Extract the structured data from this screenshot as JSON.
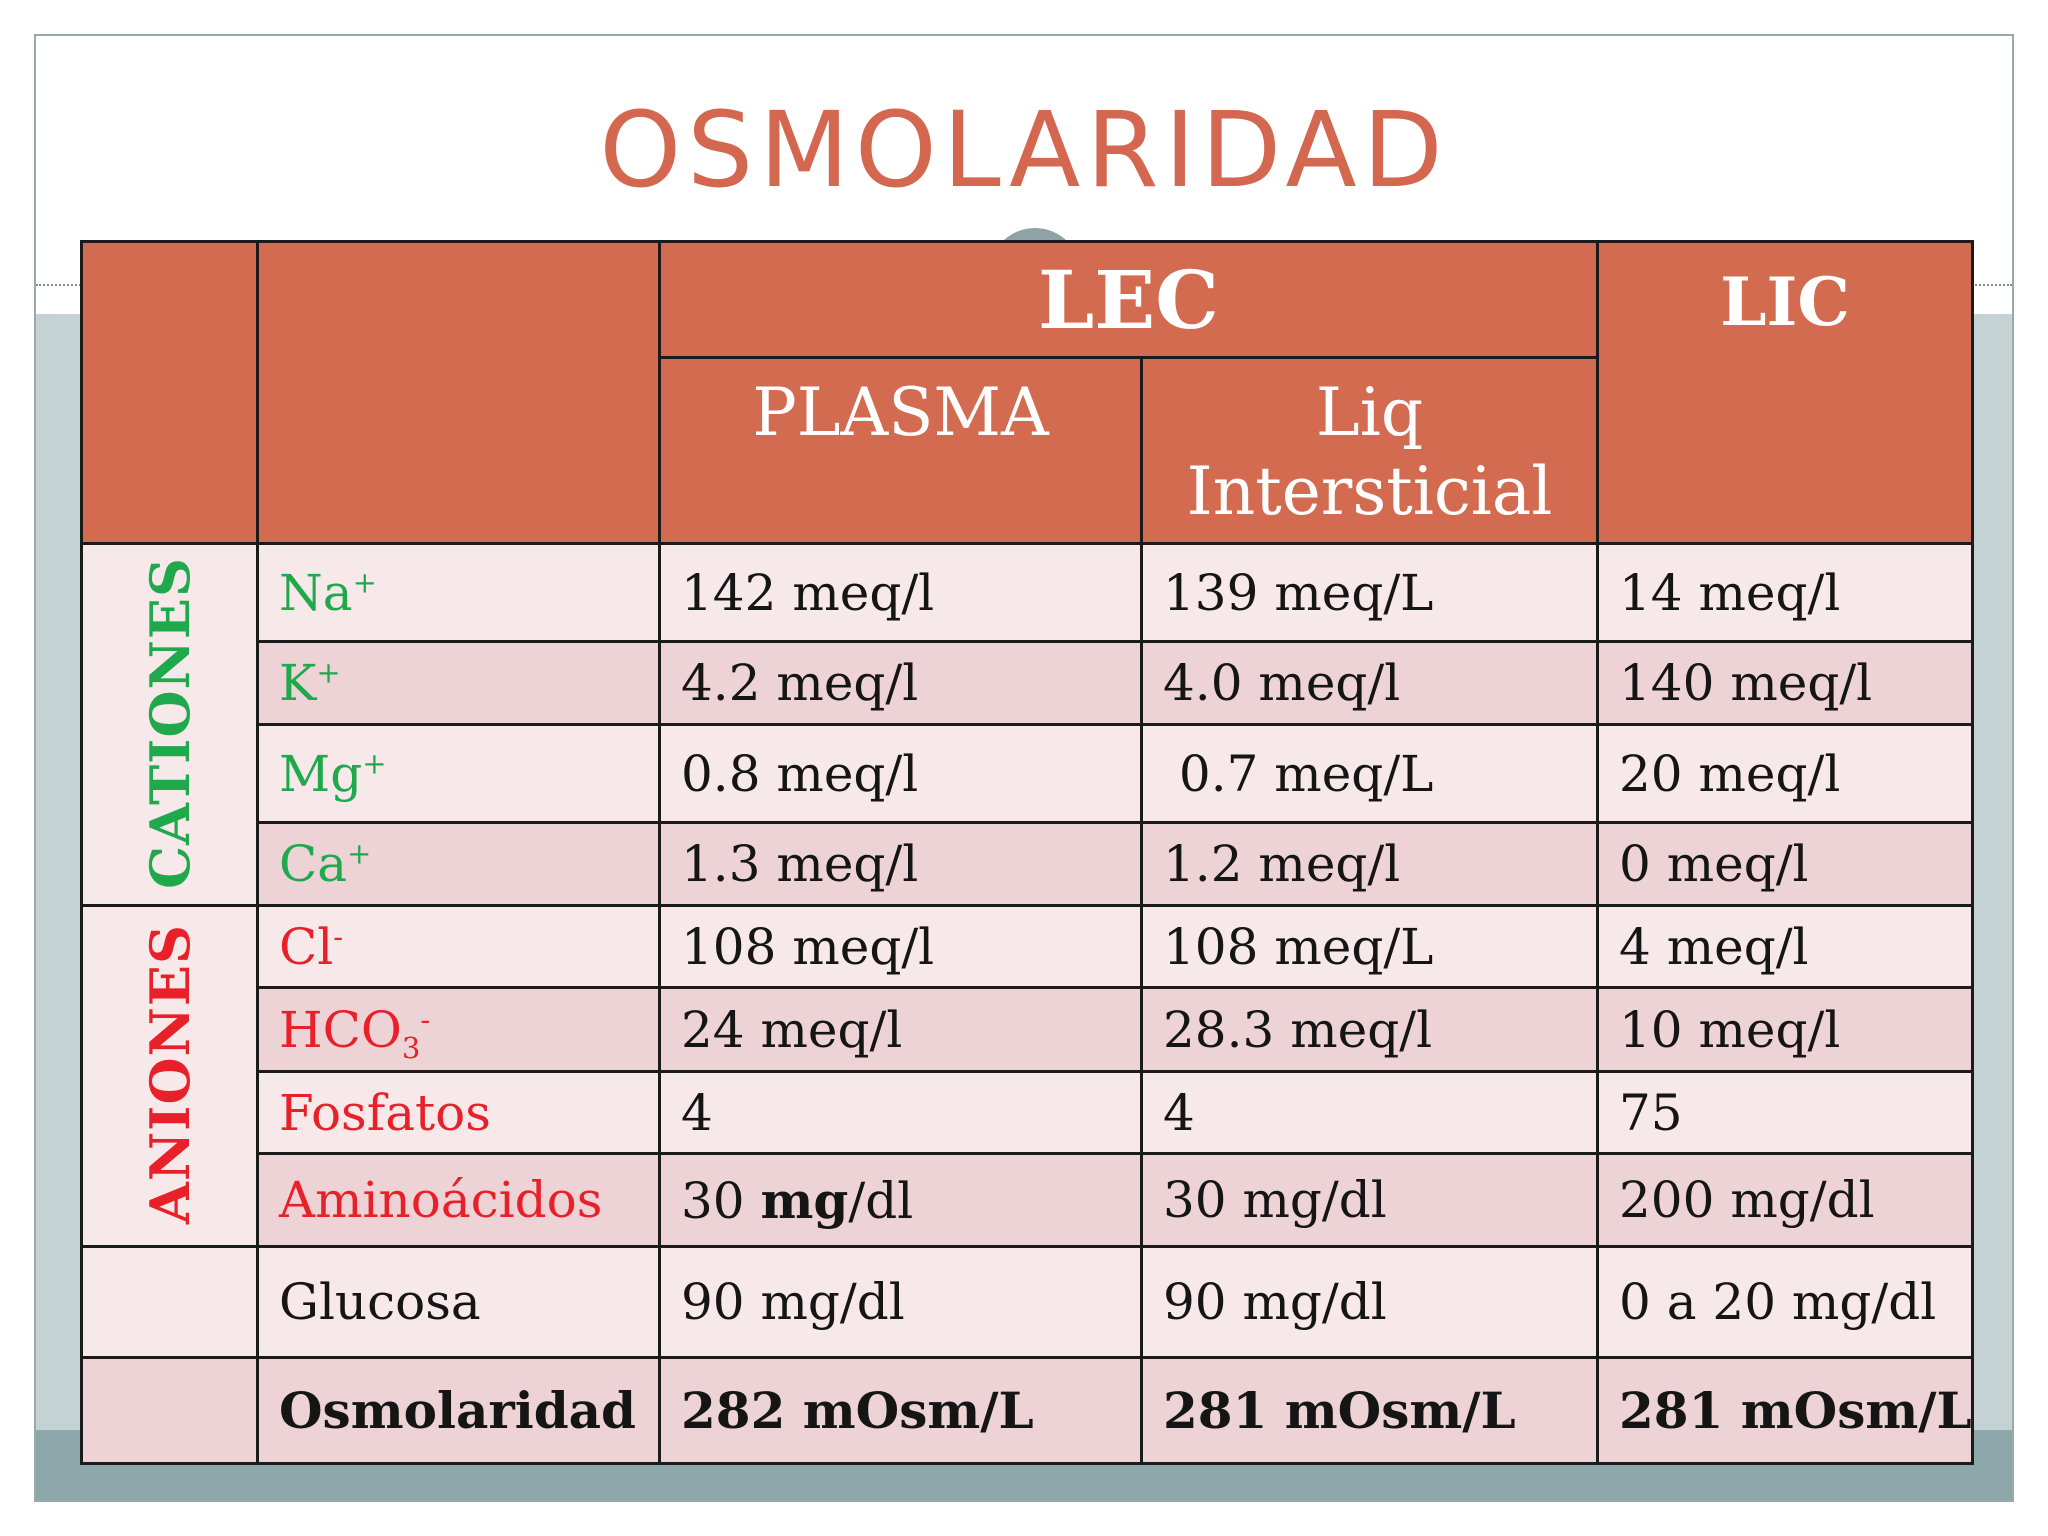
{
  "title": "OSMOLARIDAD",
  "colors": {
    "header": "#d36b51",
    "title": "#d4674f",
    "cation": "#1fa84c",
    "anion": "#e8202a"
  },
  "header": {
    "lec": "LEC",
    "lic": "LIC",
    "plasma": "PLASMA",
    "intersticial_line1": "Liq",
    "intersticial_line2": "Intersticial"
  },
  "groups": {
    "cations": "CATIONES",
    "anions": "ANIONES"
  },
  "rows": [
    {
      "ion": "Na",
      "charge": "+",
      "plasma": "142 meq/l",
      "intersticial": "139 meq/L",
      "lic": "14 meq/l"
    },
    {
      "ion": "K",
      "charge": "+",
      "plasma": "4.2 meq/l",
      "intersticial": "4.0 meq/l",
      "lic": "140 meq/l"
    },
    {
      "ion": "Mg",
      "charge": "+",
      "plasma": "0.8 meq/l",
      "intersticial": " 0.7 meq/L",
      "lic": "20 meq/l"
    },
    {
      "ion": "Ca",
      "charge": "+",
      "plasma": "1.3 meq/l",
      "intersticial": "1.2 meq/l",
      "lic": "0 meq/l"
    },
    {
      "ion": "Cl",
      "charge": "-",
      "plasma": "108 meq/l",
      "intersticial": "108 meq/L",
      "lic": "4 meq/l"
    },
    {
      "ion": "HCO",
      "subscript": "3",
      "charge": "-",
      "plasma": "24 meq/l",
      "intersticial": "28.3 meq/l",
      "lic": "10 meq/l"
    },
    {
      "ion": "Fosfatos",
      "plasma": "4",
      "intersticial": "4",
      "lic": "75"
    },
    {
      "ion": "Aminoácidos",
      "plasma_num": "30",
      "plasma_unit_bold": "mg",
      "plasma_unit_rest": "/dl",
      "intersticial": "30 mg/dl",
      "lic": "200 mg/dl"
    },
    {
      "ion": "Glucosa",
      "plasma": "90 mg/dl",
      "intersticial": "90 mg/dl",
      "lic": "0 a 20 mg/dl"
    },
    {
      "ion": "Osmolaridad",
      "plasma": "282 mOsm/L",
      "intersticial": "281 mOsm/L",
      "lic": "281 mOsm/L"
    }
  ]
}
